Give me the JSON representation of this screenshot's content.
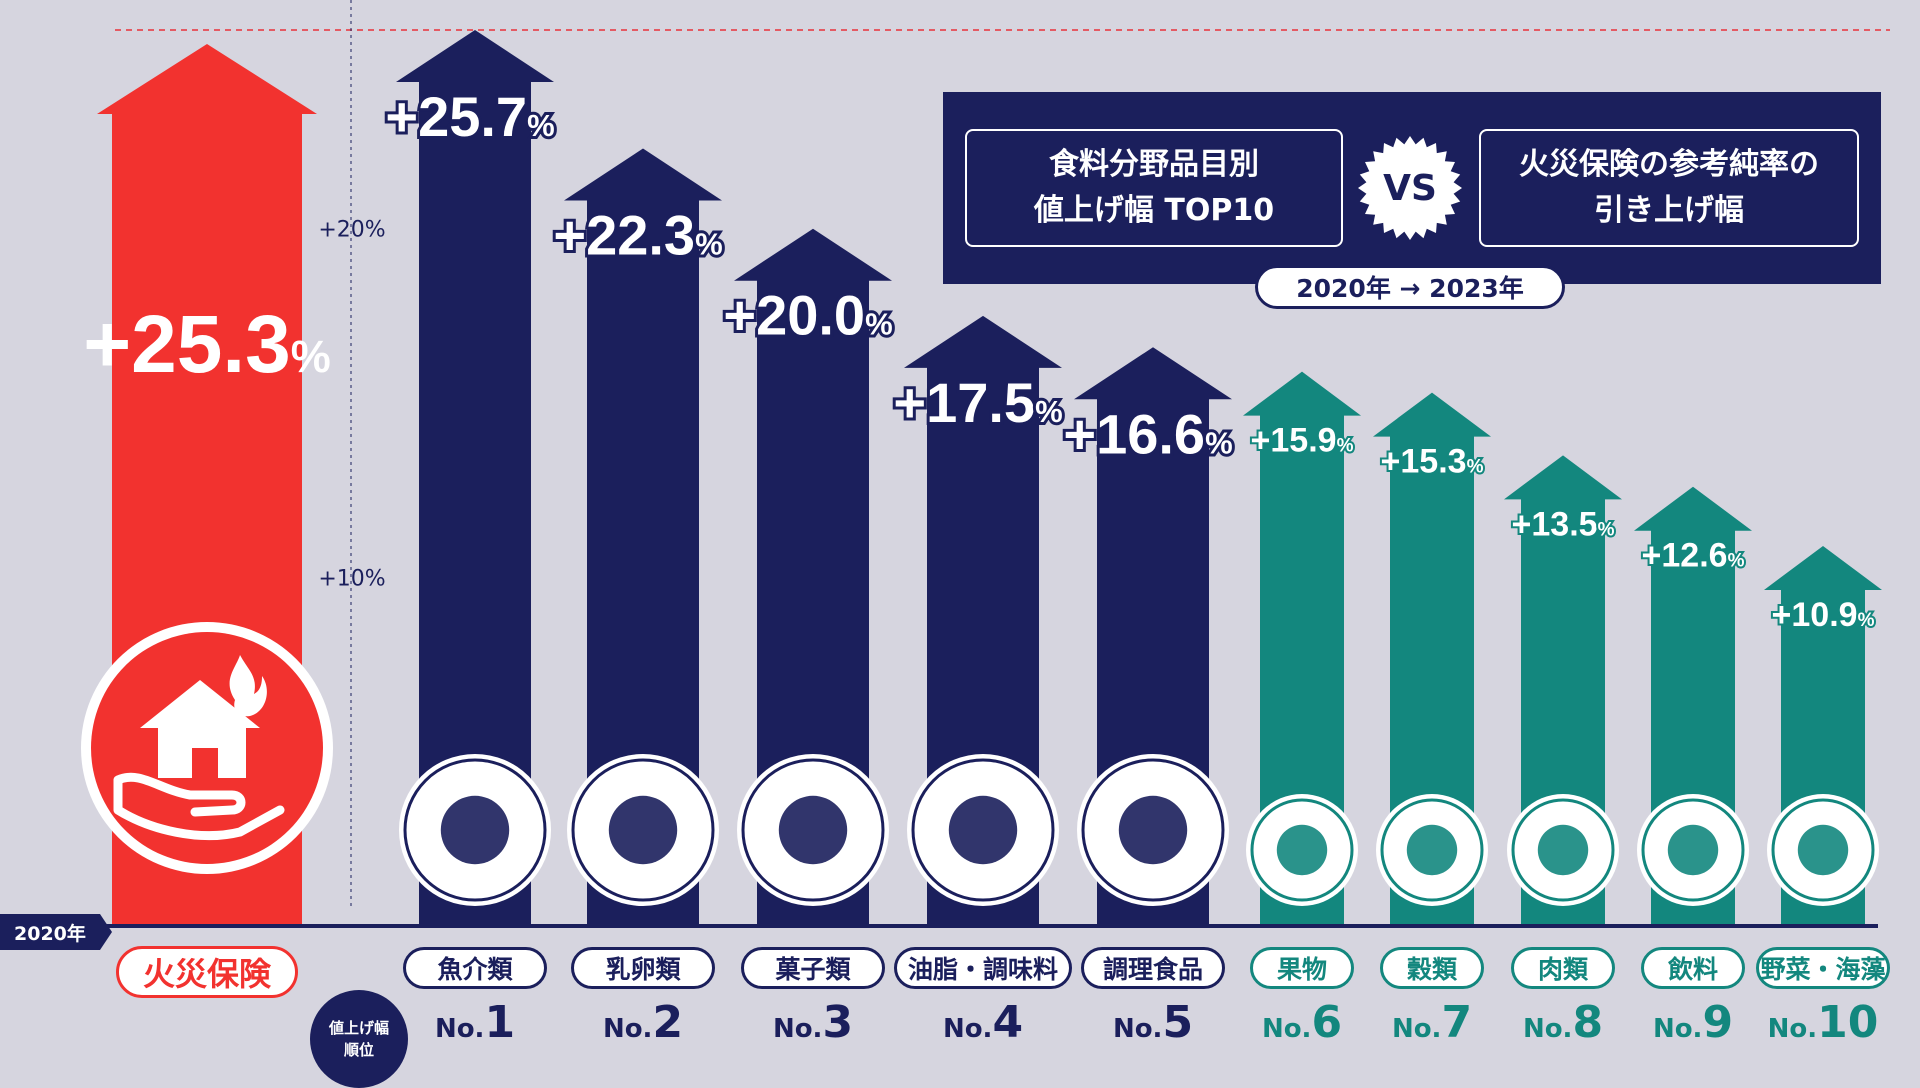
{
  "chart_data": {
    "type": "bar",
    "style": "upward arrows",
    "header": {
      "left_lines": [
        "食料分野品目別",
        "値上げ幅 TOP10"
      ],
      "vs": "VS",
      "right_lines": [
        "火災保険の参考純率の",
        "引き上げ幅"
      ],
      "year_range": "2020年 → 2023年"
    },
    "baseline_label": "2020年",
    "rank_caption_lines": [
      "値上げ幅",
      "順位"
    ],
    "gridlines": [
      {
        "label": "+10%",
        "value": 10
      },
      {
        "label": "+20%",
        "value": 20
      }
    ],
    "reference_line": {
      "value": 25.7,
      "style": "dashed",
      "color": "#e8323a"
    },
    "comparison": {
      "category": "火災保険",
      "value": 25.3,
      "label_main": "+25.3",
      "label_unit": "%",
      "color": "#f2322f",
      "icon": "house-fire-hand-icon"
    },
    "categories": [
      "魚介類",
      "乳卵類",
      "菓子類",
      "油脂・調味料",
      "調理食品",
      "果物",
      "穀類",
      "肉類",
      "飲料",
      "野菜・海藻"
    ],
    "values": [
      25.7,
      22.3,
      20.0,
      17.5,
      16.6,
      15.9,
      15.3,
      13.5,
      12.6,
      10.9
    ],
    "value_labels": [
      "+25.7",
      "+22.3",
      "+20.0",
      "+17.5",
      "+16.6",
      "+15.9",
      "+15.3",
      "+13.5",
      "+12.6",
      "+10.9"
    ],
    "unit": "%",
    "rank_prefix": "No.",
    "ranks": [
      "1",
      "2",
      "3",
      "4",
      "5",
      "6",
      "7",
      "8",
      "9",
      "10"
    ],
    "colors": {
      "top5": "#1b1f5c",
      "rest": "#13877e",
      "background": "#d6d5df"
    },
    "icons": [
      "fish-shellfish-icon",
      "dairy-eggs-icon",
      "sweets-icon",
      "oil-seasoning-icon",
      "prepared-food-icon",
      "fruit-icon",
      "grain-icon",
      "meat-icon",
      "beverage-icon",
      "vegetable-seaweed-icon"
    ],
    "ylim": [
      0,
      25.7
    ]
  }
}
